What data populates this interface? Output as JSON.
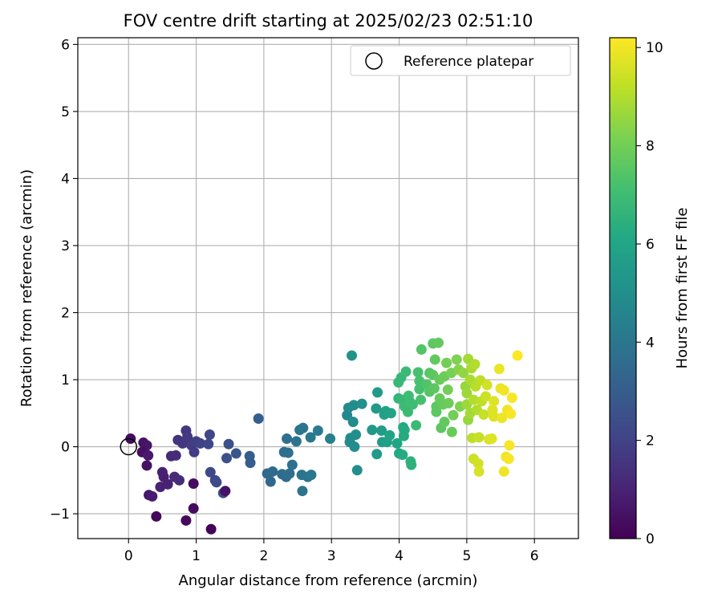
{
  "chart_data": {
    "type": "scatter",
    "title": "FOV centre drift starting at 2025/02/23 02:51:10",
    "xlabel": "Angular distance from reference (arcmin)",
    "ylabel": "Rotation from reference (arcmin)",
    "xlim": [
      -0.75,
      6.65
    ],
    "ylim": [
      -1.37,
      6.1
    ],
    "xticks": [
      0,
      1,
      2,
      3,
      4,
      5,
      6
    ],
    "yticks": [
      -1,
      0,
      1,
      2,
      3,
      4,
      5,
      6
    ],
    "yticklabels": [
      "−1",
      "0",
      "1",
      "2",
      "3",
      "4",
      "5",
      "6"
    ],
    "grid": true,
    "legend": {
      "placement": "top-right",
      "entries": [
        {
          "label": "Reference platepar",
          "marker": "open-circle",
          "x": 0,
          "y": 0
        }
      ]
    },
    "colorbar": {
      "label": "Hours from first FF file",
      "colormap": "viridis",
      "range": [
        0,
        10.2
      ],
      "ticks": [
        0,
        2,
        4,
        6,
        8,
        10
      ]
    },
    "points": [
      [
        0.03,
        0.12,
        0.3
      ],
      [
        0.22,
        0.06,
        0.5
      ],
      [
        0.27,
        0.02,
        0.6
      ],
      [
        0.2,
        -0.08,
        0.4
      ],
      [
        0.29,
        -0.13,
        0.7
      ],
      [
        0.27,
        -0.28,
        0.5
      ],
      [
        0.3,
        -0.72,
        0.6
      ],
      [
        0.35,
        -0.74,
        0.8
      ],
      [
        0.41,
        -1.04,
        0.2
      ],
      [
        0.5,
        -0.38,
        0.9
      ],
      [
        0.47,
        -0.6,
        1.0
      ],
      [
        0.52,
        -0.45,
        0.9
      ],
      [
        0.58,
        -0.56,
        1.0
      ],
      [
        0.63,
        -0.14,
        1.2
      ],
      [
        0.7,
        -0.13,
        1.3
      ],
      [
        0.73,
        0.1,
        1.5
      ],
      [
        0.68,
        -0.45,
        1.2
      ],
      [
        0.75,
        -0.5,
        1.3
      ],
      [
        0.8,
        0.05,
        1.6
      ],
      [
        0.85,
        0.24,
        1.7
      ],
      [
        0.87,
        0.15,
        1.7
      ],
      [
        0.85,
        -1.1,
        0.2
      ],
      [
        0.96,
        -0.55,
        0.3
      ],
      [
        0.96,
        -0.92,
        0.3
      ],
      [
        0.93,
        0.02,
        1.8
      ],
      [
        0.97,
        -0.08,
        1.8
      ],
      [
        1.0,
        0.08,
        1.9
      ],
      [
        1.06,
        0.05,
        2.0
      ],
      [
        1.2,
        0.18,
        2.1
      ],
      [
        1.18,
        0.04,
        2.1
      ],
      [
        1.21,
        -0.38,
        2.2
      ],
      [
        1.22,
        -1.23,
        0.1
      ],
      [
        1.28,
        -0.5,
        2.2
      ],
      [
        1.3,
        -0.53,
        2.3
      ],
      [
        1.4,
        -0.69,
        2.3
      ],
      [
        1.43,
        -0.66,
        0.5
      ],
      [
        1.45,
        -0.17,
        2.5
      ],
      [
        1.48,
        0.04,
        2.5
      ],
      [
        1.59,
        -0.1,
        2.7
      ],
      [
        1.79,
        -0.14,
        3.0
      ],
      [
        1.8,
        -0.24,
        3.0
      ],
      [
        1.92,
        0.42,
        3.1
      ],
      [
        2.05,
        -0.4,
        3.4
      ],
      [
        2.1,
        -0.52,
        3.4
      ],
      [
        2.13,
        -0.37,
        3.5
      ],
      [
        2.27,
        -0.41,
        3.6
      ],
      [
        2.3,
        -0.08,
        3.7
      ],
      [
        2.33,
        -0.45,
        3.6
      ],
      [
        2.34,
        0.12,
        3.7
      ],
      [
        2.36,
        -0.09,
        3.7
      ],
      [
        2.38,
        -0.4,
        3.7
      ],
      [
        2.42,
        -0.27,
        3.8
      ],
      [
        2.48,
        0.08,
        3.9
      ],
      [
        2.53,
        0.25,
        4.0
      ],
      [
        2.58,
        0.28,
        4.0
      ],
      [
        2.56,
        -0.42,
        3.9
      ],
      [
        2.57,
        -0.66,
        3.9
      ],
      [
        2.65,
        -0.45,
        4.0
      ],
      [
        2.69,
        0.14,
        4.1
      ],
      [
        2.7,
        -0.42,
        4.1
      ],
      [
        2.8,
        0.24,
        4.2
      ],
      [
        2.98,
        0.12,
        4.4
      ],
      [
        3.23,
        0.47,
        4.7
      ],
      [
        3.25,
        0.58,
        4.8
      ],
      [
        3.28,
        0.13,
        4.8
      ],
      [
        3.27,
        0.07,
        4.8
      ],
      [
        3.3,
        1.36,
        5.2
      ],
      [
        3.33,
        0.62,
        4.9
      ],
      [
        3.32,
        0.37,
        4.9
      ],
      [
        3.34,
        0.0,
        4.9
      ],
      [
        3.36,
        0.18,
        5.0
      ],
      [
        3.38,
        -0.35,
        5.0
      ],
      [
        3.45,
        0.64,
        5.1
      ],
      [
        3.6,
        0.25,
        5.4
      ],
      [
        3.66,
        0.57,
        5.5
      ],
      [
        3.68,
        0.81,
        5.5
      ],
      [
        3.67,
        -0.11,
        5.5
      ],
      [
        3.74,
        0.24,
        5.6
      ],
      [
        3.75,
        0.07,
        5.6
      ],
      [
        3.8,
        0.53,
        5.8
      ],
      [
        3.78,
        0.48,
        5.8
      ],
      [
        3.82,
        0.07,
        5.8
      ],
      [
        3.86,
        0.17,
        5.9
      ],
      [
        3.88,
        0.5,
        5.9
      ],
      [
        3.97,
        0.05,
        6.0
      ],
      [
        4.0,
        -0.1,
        6.1
      ],
      [
        4.05,
        -0.12,
        6.2
      ],
      [
        4.06,
        0.29,
        6.2
      ],
      [
        4.08,
        0.25,
        6.2
      ],
      [
        4.07,
        0.16,
        6.2
      ],
      [
        3.99,
        0.96,
        6.8
      ],
      [
        4.03,
        1.03,
        6.8
      ],
      [
        3.99,
        0.72,
        6.7
      ],
      [
        4.05,
        0.7,
        6.8
      ],
      [
        4.08,
        0.6,
        6.9
      ],
      [
        4.1,
        1.12,
        6.9
      ],
      [
        4.13,
        0.52,
        6.9
      ],
      [
        4.14,
        0.76,
        7.0
      ],
      [
        4.16,
        0.67,
        7.0
      ],
      [
        4.18,
        -0.27,
        6.5
      ],
      [
        4.17,
        -0.22,
        6.5
      ],
      [
        4.2,
        0.63,
        7.0
      ],
      [
        4.25,
        0.32,
        6.9
      ],
      [
        4.28,
        1.11,
        7.2
      ],
      [
        4.3,
        0.98,
        7.2
      ],
      [
        4.3,
        0.86,
        7.2
      ],
      [
        4.32,
        0.7,
        7.2
      ],
      [
        4.33,
        1.45,
        7.4
      ],
      [
        4.41,
        0.93,
        7.4
      ],
      [
        4.45,
        1.1,
        7.5
      ],
      [
        4.45,
        0.82,
        7.5
      ],
      [
        4.5,
        1.54,
        7.6
      ],
      [
        4.5,
        1.07,
        7.6
      ],
      [
        4.52,
        0.87,
        7.6
      ],
      [
        4.55,
        0.6,
        7.6
      ],
      [
        4.53,
        1.3,
        7.7
      ],
      [
        4.55,
        0.52,
        7.6
      ],
      [
        4.58,
        1.55,
        7.7
      ],
      [
        4.6,
        1.0,
        7.8
      ],
      [
        4.6,
        0.72,
        7.8
      ],
      [
        4.62,
        0.28,
        7.6
      ],
      [
        4.65,
        0.63,
        7.8
      ],
      [
        4.67,
        0.37,
        7.7
      ],
      [
        4.67,
        1.05,
        7.9
      ],
      [
        4.7,
        1.25,
        8.0
      ],
      [
        4.72,
        0.85,
        8.0
      ],
      [
        4.73,
        0.65,
        7.9
      ],
      [
        4.77,
        1.1,
        8.1
      ],
      [
        4.78,
        0.22,
        7.8
      ],
      [
        4.8,
        0.47,
        8.0
      ],
      [
        4.85,
        1.3,
        8.2
      ],
      [
        4.88,
        1.15,
        8.3
      ],
      [
        4.9,
        0.6,
        8.2
      ],
      [
        4.95,
        1.1,
        8.5
      ],
      [
        4.98,
        0.9,
        8.6
      ],
      [
        5.0,
        0.8,
        8.7
      ],
      [
        5.0,
        0.63,
        8.7
      ],
      [
        5.02,
        1.31,
        8.8
      ],
      [
        5.02,
        0.4,
        8.6
      ],
      [
        5.05,
        1.0,
        8.9
      ],
      [
        5.05,
        0.5,
        8.8
      ],
      [
        5.07,
        1.17,
        8.9
      ],
      [
        5.08,
        0.13,
        9.2
      ],
      [
        5.1,
        -0.18,
        9.4
      ],
      [
        5.1,
        0.7,
        9.0
      ],
      [
        5.12,
        1.23,
        9.0
      ],
      [
        5.13,
        0.9,
        9.1
      ],
      [
        5.15,
        0.55,
        9.0
      ],
      [
        5.17,
        -0.25,
        9.5
      ],
      [
        5.18,
        -0.37,
        9.6
      ],
      [
        5.18,
        0.14,
        9.3
      ],
      [
        5.2,
        0.99,
        9.2
      ],
      [
        5.22,
        0.68,
        9.2
      ],
      [
        5.25,
        0.48,
        9.3
      ],
      [
        5.28,
        0.75,
        9.4
      ],
      [
        5.3,
        0.92,
        9.5
      ],
      [
        5.33,
        0.11,
        9.6
      ],
      [
        5.37,
        0.12,
        9.7
      ],
      [
        5.38,
        0.55,
        9.7
      ],
      [
        5.4,
        0.45,
        9.7
      ],
      [
        5.4,
        0.68,
        9.7
      ],
      [
        5.48,
        1.16,
        9.9
      ],
      [
        5.5,
        0.87,
        9.9
      ],
      [
        5.52,
        0.43,
        9.9
      ],
      [
        5.55,
        0.84,
        10.0
      ],
      [
        5.55,
        -0.37,
        10.0
      ],
      [
        5.58,
        -0.15,
        10.0
      ],
      [
        5.6,
        0.55,
        10.0
      ],
      [
        5.62,
        -0.18,
        10.1
      ],
      [
        5.63,
        0.02,
        10.1
      ],
      [
        5.65,
        0.49,
        10.1
      ],
      [
        5.67,
        0.73,
        10.1
      ],
      [
        5.75,
        1.36,
        10.2
      ]
    ]
  }
}
